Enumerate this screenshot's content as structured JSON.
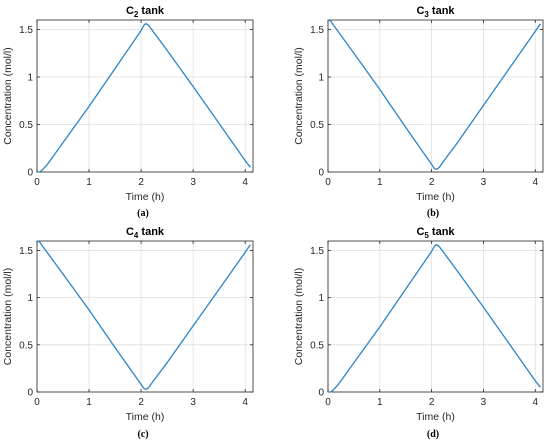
{
  "colors": {
    "line": "#2f83c4",
    "grid": "#dfdfdf",
    "axis": "#262626"
  },
  "chart_data": [
    {
      "type": "line",
      "title": "C",
      "title_subscript": "2",
      "title_suffix": " tank",
      "caption": "(a)",
      "xlabel": "Time (h)",
      "ylabel": "Concentration (mol/l)",
      "xlim": [
        0,
        4.15
      ],
      "ylim": [
        0,
        1.6
      ],
      "xticks": [
        0,
        1,
        2,
        3,
        4
      ],
      "yticks": [
        0,
        0.5,
        1,
        1.5
      ],
      "ytick_labels": [
        "0",
        "0.5",
        "1",
        "1.5"
      ],
      "grid": true,
      "x": [
        0,
        0.05,
        0.1,
        0.2,
        0.5,
        1.0,
        1.5,
        2.0,
        2.05,
        2.08,
        2.1,
        2.15,
        2.5,
        3.0,
        3.5,
        4.0,
        4.1
      ],
      "y": [
        0.0,
        0.0,
        0.02,
        0.08,
        0.31,
        0.69,
        1.09,
        1.49,
        1.54,
        1.56,
        1.56,
        1.54,
        1.28,
        0.9,
        0.51,
        0.12,
        0.05
      ]
    },
    {
      "type": "line",
      "title": "C",
      "title_subscript": "3",
      "title_suffix": " tank",
      "caption": "(b)",
      "xlabel": "Time (h)",
      "ylabel": "Concentration (mol/l)",
      "xlim": [
        0,
        4.15
      ],
      "ylim": [
        0,
        1.6
      ],
      "xticks": [
        0,
        1,
        2,
        3,
        4
      ],
      "yticks": [
        0,
        0.5,
        1,
        1.5
      ],
      "ytick_labels": [
        "0",
        "0.5",
        "1",
        "1.5"
      ],
      "grid": true,
      "x": [
        0,
        0.05,
        0.1,
        0.5,
        1.0,
        1.5,
        2.0,
        2.05,
        2.08,
        2.1,
        2.15,
        2.2,
        2.5,
        3.0,
        3.5,
        4.0,
        4.1
      ],
      "y": [
        1.6,
        1.59,
        1.55,
        1.25,
        0.87,
        0.47,
        0.08,
        0.04,
        0.03,
        0.03,
        0.05,
        0.09,
        0.31,
        0.7,
        1.09,
        1.48,
        1.56
      ]
    },
    {
      "type": "line",
      "title": "C",
      "title_subscript": "4",
      "title_suffix": " tank",
      "caption": "(c)",
      "xlabel": "Time (h)",
      "ylabel": "Concentration (mol/l)",
      "xlim": [
        0,
        4.15
      ],
      "ylim": [
        0,
        1.6
      ],
      "xticks": [
        0,
        1,
        2,
        3,
        4
      ],
      "yticks": [
        0,
        0.5,
        1,
        1.5
      ],
      "ytick_labels": [
        "0",
        "0.5",
        "1",
        "1.5"
      ],
      "grid": true,
      "x": [
        0,
        0.05,
        0.1,
        0.5,
        1.0,
        1.5,
        2.0,
        2.05,
        2.08,
        2.1,
        2.15,
        2.2,
        2.5,
        3.0,
        3.5,
        4.0,
        4.1
      ],
      "y": [
        1.6,
        1.59,
        1.55,
        1.25,
        0.87,
        0.47,
        0.08,
        0.04,
        0.03,
        0.03,
        0.05,
        0.09,
        0.31,
        0.7,
        1.09,
        1.48,
        1.56
      ]
    },
    {
      "type": "line",
      "title": "C",
      "title_subscript": "5",
      "title_suffix": " tank",
      "caption": "(d)",
      "xlabel": "Time (h)",
      "ylabel": "Concentration (mol/l)",
      "xlim": [
        0,
        4.15
      ],
      "ylim": [
        0,
        1.6
      ],
      "xticks": [
        0,
        1,
        2,
        3,
        4
      ],
      "yticks": [
        0,
        0.5,
        1,
        1.5
      ],
      "ytick_labels": [
        "0",
        "0.5",
        "1",
        "1.5"
      ],
      "grid": true,
      "x": [
        0,
        0.05,
        0.1,
        0.2,
        0.5,
        1.0,
        1.5,
        2.0,
        2.05,
        2.08,
        2.1,
        2.15,
        2.5,
        3.0,
        3.5,
        4.0,
        4.1
      ],
      "y": [
        0.0,
        0.0,
        0.02,
        0.08,
        0.31,
        0.69,
        1.09,
        1.49,
        1.54,
        1.56,
        1.56,
        1.54,
        1.28,
        0.9,
        0.51,
        0.12,
        0.05
      ]
    }
  ]
}
